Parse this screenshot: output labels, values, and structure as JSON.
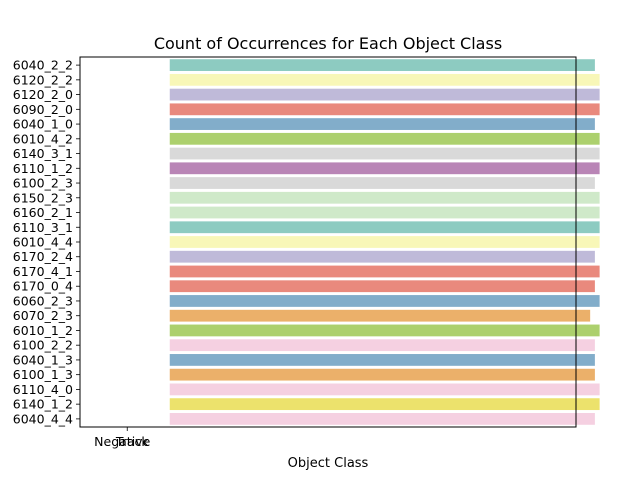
{
  "chart_data": {
    "type": "bar",
    "orientation": "horizontal",
    "title": "Count of Occurrences for Each Object Class",
    "xlabel": "Object Class",
    "ylabel": "",
    "xlim": [
      -0.2,
      1.9
    ],
    "x_tick_labels": [
      "Negative",
      "Track"
    ],
    "categories": [
      "6040_2_2",
      "6120_2_2",
      "6120_2_0",
      "6090_2_0",
      "6040_1_0",
      "6010_4_2",
      "6140_3_1",
      "6110_1_2",
      "6100_2_3",
      "6150_2_3",
      "6160_2_1",
      "6110_3_1",
      "6010_4_4",
      "6170_2_4",
      "6170_4_1",
      "6170_0_4",
      "6060_2_3",
      "6070_2_3",
      "6010_1_2",
      "6100_2_2",
      "6040_1_3",
      "6100_1_3",
      "6110_4_0",
      "6140_1_2",
      "6040_4_4"
    ],
    "values": [
      1.98,
      2.0,
      2.0,
      2.0,
      1.98,
      2.0,
      2.0,
      2.0,
      1.98,
      2.0,
      2.0,
      2.0,
      2.0,
      1.98,
      2.0,
      1.98,
      2.0,
      1.96,
      2.0,
      1.98,
      1.98,
      1.98,
      2.0,
      2.0,
      1.98
    ],
    "colors": [
      "#8dcbc1",
      "#f8f7b8",
      "#bfbad9",
      "#e9897d",
      "#82adca",
      "#acd06d",
      "#d9d9d9",
      "#b985b6",
      "#d9d9d9",
      "#cfe9c9",
      "#cfe9c9",
      "#8dcbc1",
      "#f8f7b8",
      "#bfbad9",
      "#e9897d",
      "#e9897d",
      "#82adca",
      "#ebb06a",
      "#acd06d",
      "#f5d0e1",
      "#82adca",
      "#ebb06a",
      "#f5d0e1",
      "#ece26c",
      "#f5d0e1"
    ],
    "grid": false,
    "legend": "none"
  }
}
